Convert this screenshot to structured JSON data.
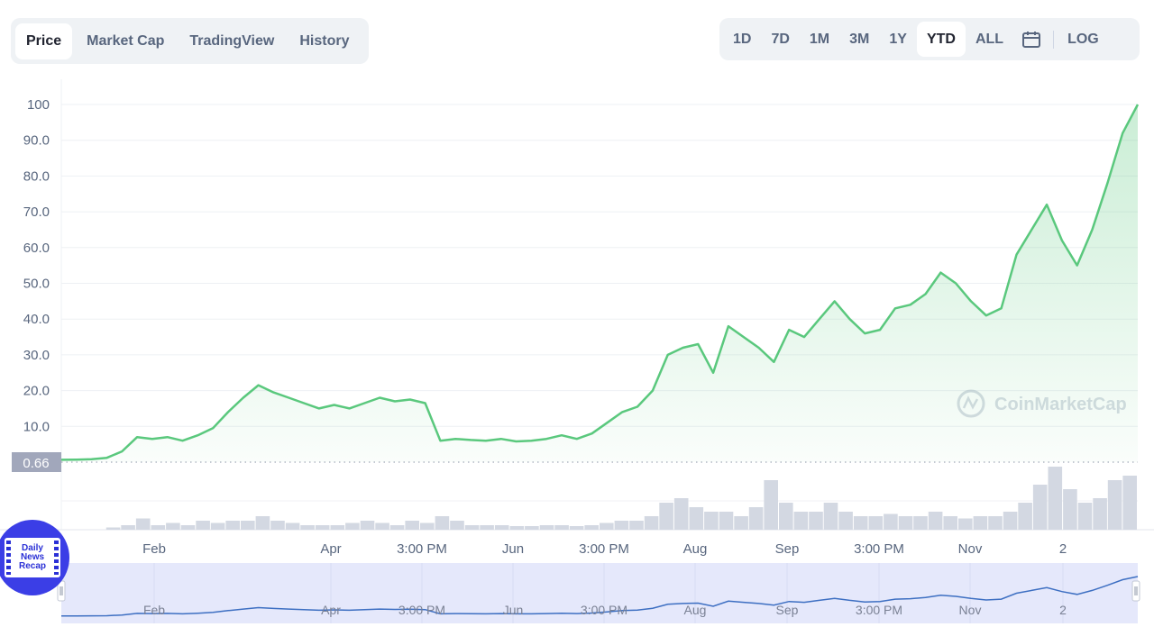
{
  "tabs": [
    {
      "label": "Price",
      "active": true
    },
    {
      "label": "Market Cap",
      "active": false
    },
    {
      "label": "TradingView",
      "active": false
    },
    {
      "label": "History",
      "active": false
    }
  ],
  "ranges": [
    {
      "label": "1D",
      "active": false
    },
    {
      "label": "7D",
      "active": false
    },
    {
      "label": "1M",
      "active": false
    },
    {
      "label": "3M",
      "active": false
    },
    {
      "label": "1Y",
      "active": false
    },
    {
      "label": "YTD",
      "active": true
    },
    {
      "label": "ALL",
      "active": false
    }
  ],
  "log_label": "LOG",
  "calendar_icon": "calendar-icon",
  "watermark": "CoinMarketCap",
  "news_badge": {
    "line1": "Daily",
    "line2": "News",
    "line3": "Recap"
  },
  "colors": {
    "price_line": "#5ac87d",
    "volume": "#d3d8e2",
    "navigator_line": "#3d6fc2",
    "navigator_fill": "#e5e8fb",
    "current_price_tag": "#a1a7bb",
    "news_badge": "#3b3ee6"
  },
  "chart_data": {
    "type": "line",
    "title": "",
    "xlabel": "",
    "ylabel": "",
    "ylim": [
      0,
      100
    ],
    "y_ticks": [
      "10.0",
      "20.0",
      "30.0",
      "40.0",
      "50.0",
      "60.0",
      "70.0",
      "80.0",
      "90.0",
      "100"
    ],
    "x_tick_labels": [
      "Feb",
      "Apr",
      "3:00 PM",
      "Jun",
      "3:00 PM",
      "Aug",
      "Sep",
      "3:00 PM",
      "Nov",
      "2"
    ],
    "current_price_label": "0.66",
    "grid": true,
    "series": [
      {
        "values": [
          0.66,
          0.7,
          0.8,
          1.2,
          3,
          7,
          6.5,
          7,
          6,
          7.5,
          9.5,
          14,
          18,
          21.5,
          19.5,
          18,
          16.5,
          15,
          16,
          15,
          16.5,
          18,
          17,
          17.5,
          16.5,
          6,
          6.5,
          6.2,
          6,
          6.5,
          5.8,
          6,
          6.5,
          7.5,
          6.5,
          8,
          11,
          14,
          15.5,
          20,
          30,
          32,
          33,
          25,
          38,
          35,
          32,
          28,
          37,
          35,
          40,
          45,
          40,
          36,
          37,
          43,
          44,
          47,
          53,
          50,
          45,
          41,
          43,
          58,
          65,
          72,
          62,
          55,
          65,
          78,
          92,
          100
        ]
      }
    ],
    "volume": [
      0,
      0,
      0,
      0.5,
      1,
      2.5,
      1,
      1.5,
      1,
      2,
      1.5,
      2,
      2,
      3,
      2,
      1.5,
      1,
      1,
      1,
      1.5,
      2,
      1.5,
      1,
      2,
      1.5,
      3,
      2,
      1,
      1,
      1,
      0.8,
      0.8,
      1,
      1,
      0.8,
      1,
      1.5,
      2,
      2,
      3,
      6,
      7,
      5,
      4,
      4,
      3,
      5,
      11,
      6,
      4,
      4,
      6,
      4,
      3,
      3,
      3.5,
      3,
      3,
      4,
      3,
      2.5,
      3,
      3,
      4,
      6,
      10,
      14,
      9,
      6,
      7,
      11,
      12
    ]
  }
}
